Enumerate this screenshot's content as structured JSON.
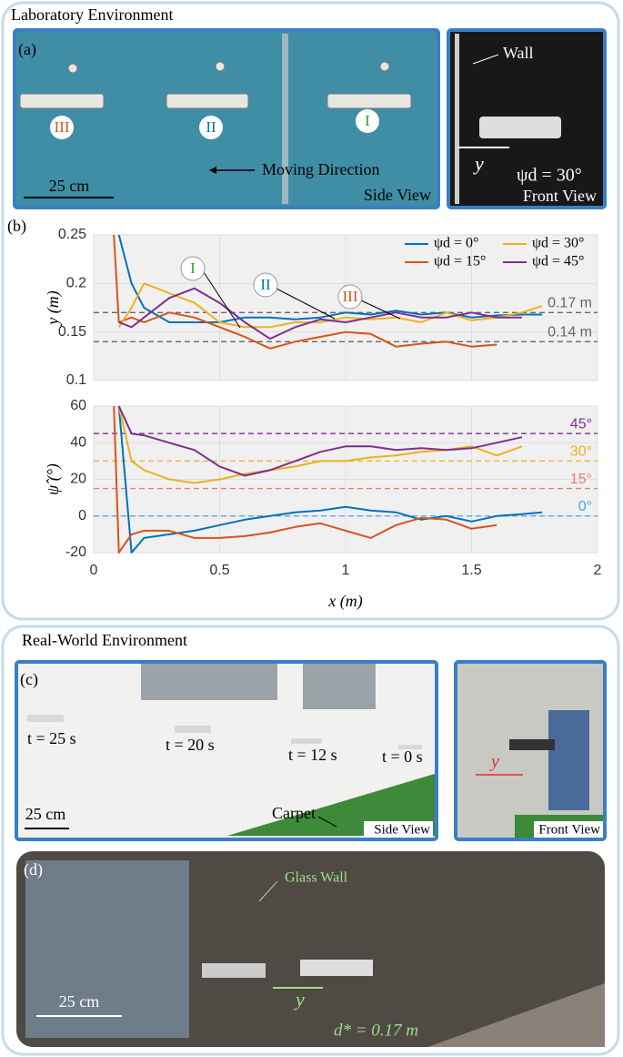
{
  "lab": {
    "title": "Laboratory Environment",
    "panel_a": {
      "label": "(a)",
      "markers": [
        "III",
        "II",
        "I"
      ],
      "scale": "25 cm",
      "direction": "Moving Direction",
      "view": "Side View"
    },
    "front": {
      "wall": "Wall",
      "axis": "y",
      "angle": "ψd = 30°",
      "view": "Front View"
    },
    "panel_b": "(b)"
  },
  "real": {
    "title": "Real-World Environment",
    "panel_c": {
      "label": "(c)",
      "times": [
        "t = 25 s",
        "t = 20 s",
        "t = 12 s",
        "t = 0 s"
      ],
      "scale": "25 cm",
      "carpet": "Carpet",
      "view": "Side View"
    },
    "front": {
      "axis": "y",
      "view": "Front View"
    },
    "panel_d": {
      "label": "(d)",
      "glass": "Glass Wall",
      "axis": "y",
      "scale": "25 cm",
      "distance": "d* = 0.17 m"
    }
  },
  "chart_data": [
    {
      "type": "line",
      "ylabel": "y (m)",
      "xlim": [
        0,
        2
      ],
      "ylim": [
        0.1,
        0.25
      ],
      "yticks": [
        0.1,
        0.15,
        0.2,
        0.25
      ],
      "grid": true,
      "legend": "upper right",
      "x": [
        0.08,
        0.1,
        0.15,
        0.2,
        0.3,
        0.4,
        0.5,
        0.6,
        0.7,
        0.8,
        0.9,
        1.0,
        1.1,
        1.2,
        1.3,
        1.4,
        1.5,
        1.6,
        1.7,
        1.78
      ],
      "series": [
        {
          "name": "ψd = 0°",
          "color": "#0072bd",
          "values": [
            null,
            0.25,
            0.2,
            0.175,
            0.16,
            0.16,
            0.16,
            0.165,
            0.165,
            0.163,
            0.165,
            0.17,
            0.168,
            0.172,
            0.168,
            0.17,
            0.165,
            0.167,
            0.168,
            0.168
          ]
        },
        {
          "name": "ψd = 15°",
          "color": "#d95319",
          "values": [
            0.25,
            0.16,
            0.165,
            0.16,
            0.17,
            0.165,
            0.155,
            0.145,
            0.133,
            0.14,
            0.145,
            0.15,
            0.148,
            0.135,
            0.138,
            0.14,
            0.135,
            0.137,
            null,
            null
          ]
        },
        {
          "name": "ψd = 30°",
          "color": "#edb120",
          "values": [
            null,
            0.155,
            0.175,
            0.2,
            0.19,
            0.18,
            0.16,
            0.155,
            0.155,
            0.16,
            0.16,
            0.165,
            0.163,
            0.165,
            0.16,
            0.17,
            0.162,
            0.165,
            0.17,
            0.177
          ]
        },
        {
          "name": "ψd = 45°",
          "color": "#7e2f8e",
          "values": [
            null,
            0.16,
            0.155,
            0.165,
            0.185,
            0.195,
            0.18,
            0.16,
            0.143,
            0.155,
            0.163,
            0.16,
            0.165,
            0.17,
            0.165,
            0.165,
            0.17,
            0.165,
            0.165,
            null
          ]
        }
      ],
      "reference_lines": [
        {
          "value": 0.17,
          "label": "0.17 m",
          "color": "#666666"
        },
        {
          "value": 0.14,
          "label": "0.14 m",
          "color": "#666666"
        }
      ],
      "annotations": [
        {
          "text": "I",
          "color": "#2ca02c"
        },
        {
          "text": "II",
          "color": "#0072bd"
        },
        {
          "text": "III",
          "color": "#d95319"
        }
      ]
    },
    {
      "type": "line",
      "ylabel": "ψ̂ (°)",
      "xlabel": "x (m)",
      "xlim": [
        0,
        2
      ],
      "xticks": [
        0,
        0.5,
        1,
        1.5,
        2
      ],
      "ylim": [
        -20,
        60
      ],
      "yticks": [
        -20,
        0,
        20,
        40,
        60
      ],
      "grid": true,
      "x": [
        0.08,
        0.1,
        0.15,
        0.2,
        0.3,
        0.4,
        0.5,
        0.6,
        0.7,
        0.8,
        0.9,
        1.0,
        1.1,
        1.2,
        1.3,
        1.4,
        1.5,
        1.6,
        1.7,
        1.78
      ],
      "series": [
        {
          "name": "ψd = 0°",
          "color": "#0072bd",
          "values": [
            null,
            60,
            -20,
            -12,
            -10,
            -8,
            -5,
            -2,
            0,
            2,
            3,
            5,
            3,
            2,
            -2,
            0,
            -3,
            0,
            1,
            2
          ]
        },
        {
          "name": "ψd = 15°",
          "color": "#d95319",
          "values": [
            60,
            -20,
            -10,
            -8,
            -8,
            -12,
            -12,
            -11,
            -9,
            -6,
            -4,
            -8,
            -12,
            -5,
            -1,
            -2,
            -7,
            -5,
            null,
            null
          ]
        },
        {
          "name": "ψd = 30°",
          "color": "#edb120",
          "values": [
            null,
            60,
            30,
            25,
            20,
            18,
            20,
            23,
            25,
            27,
            30,
            30,
            32,
            33,
            35,
            36,
            38,
            33,
            38,
            null
          ]
        },
        {
          "name": "ψd = 45°",
          "color": "#7e2f8e",
          "values": [
            null,
            60,
            45,
            44,
            40,
            36,
            27,
            22,
            25,
            30,
            35,
            38,
            38,
            36,
            37,
            36,
            37,
            40,
            43,
            null
          ]
        }
      ],
      "reference_lines": [
        {
          "value": 45,
          "label": "45°",
          "color": "#7e2f8e"
        },
        {
          "value": 30,
          "label": "30°",
          "color": "#edb120"
        },
        {
          "value": 15,
          "label": "15°",
          "color": "#e8826a"
        },
        {
          "value": 0,
          "label": "0°",
          "color": "#4da3d9"
        }
      ]
    }
  ]
}
